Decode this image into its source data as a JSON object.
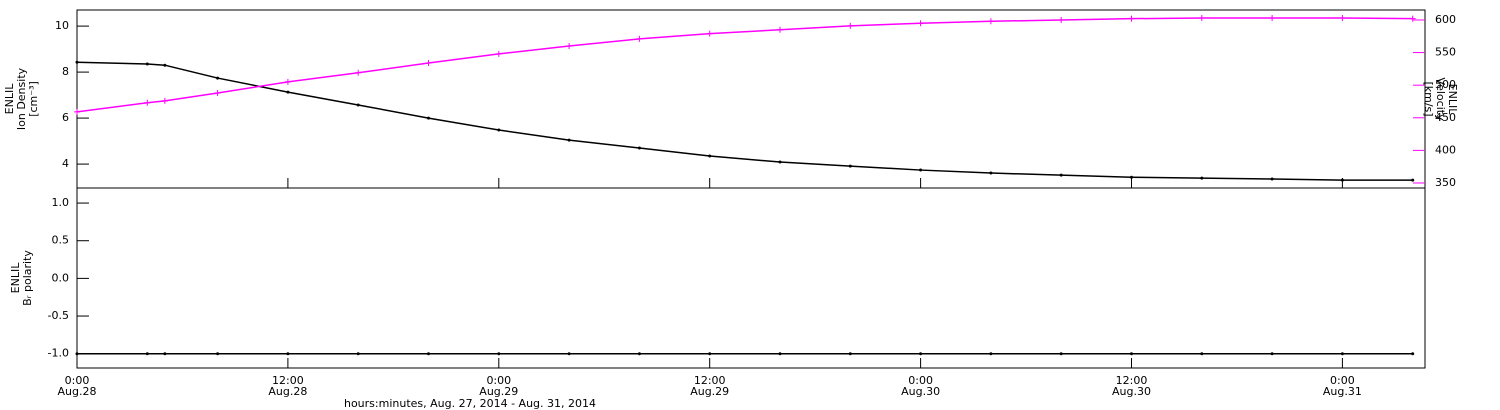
{
  "chart_data": [
    {
      "type": "line",
      "x": [
        0,
        4,
        5,
        8,
        12,
        16,
        20,
        24,
        28,
        32,
        36,
        40,
        44,
        48,
        52,
        56,
        60,
        64,
        68,
        72,
        76
      ],
      "xlim": [
        0,
        76.7
      ],
      "ylim": [
        2.96,
        10.7
      ],
      "yticks": [
        4,
        6,
        8,
        10
      ],
      "y2lim": [
        342.3,
        615.3
      ],
      "y2ticks": [
        350,
        400,
        450,
        500,
        550,
        600
      ],
      "ylabel": [
        "ENLIL",
        "Ion Density",
        "[cm⁻³]"
      ],
      "y2label": [
        "ENLIL",
        "Velocity",
        "[km/s]"
      ],
      "series": [
        {
          "color": "#000000",
          "values": [
            8.43,
            8.35,
            8.3,
            7.74,
            7.13,
            6.57,
            6.0,
            5.48,
            5.04,
            4.7,
            4.35,
            4.09,
            3.91,
            3.74,
            3.61,
            3.52,
            3.43,
            3.39,
            3.35,
            3.3,
            3.3
          ]
        },
        {
          "color": "#ff00ff",
          "axis": "y2",
          "values": [
            459,
            473,
            476,
            488,
            505,
            519,
            534,
            548,
            560,
            571,
            579,
            585,
            591,
            595,
            598,
            600,
            602,
            603,
            603,
            603,
            602
          ]
        }
      ]
    },
    {
      "type": "line",
      "x": [
        0,
        4,
        5,
        8,
        12,
        16,
        20,
        24,
        28,
        32,
        36,
        40,
        44,
        48,
        52,
        56,
        60,
        64,
        68,
        72,
        76
      ],
      "xlim": [
        0,
        76.7
      ],
      "xticks": [
        {
          "value": 0,
          "label": "0:00",
          "date": "Aug.28"
        },
        {
          "value": 12,
          "label": "12:00",
          "date": "Aug.28"
        },
        {
          "value": 24,
          "label": "0:00",
          "date": "Aug.29"
        },
        {
          "value": 36,
          "label": "12:00",
          "date": "Aug.29"
        },
        {
          "value": 48,
          "label": "0:00",
          "date": "Aug.30"
        },
        {
          "value": 60,
          "label": "12:00",
          "date": "Aug.30"
        },
        {
          "value": 72,
          "label": "0:00",
          "date": "Aug.31"
        }
      ],
      "xlabel": "hours:minutes, Aug. 27, 2014 - Aug. 31, 2014",
      "ylim": [
        -1.19,
        1.2
      ],
      "yticks": [
        {
          "value": -1,
          "label": "-1.0"
        },
        {
          "value": -0.5,
          "label": "-0.5"
        },
        {
          "value": 0,
          "label": "0.0"
        },
        {
          "value": 0.5,
          "label": "0.5"
        },
        {
          "value": 1,
          "label": "1.0"
        }
      ],
      "ylabel": [
        "ENLIL",
        "Bᵣ polarity"
      ],
      "series": [
        {
          "color": "#000000",
          "values": [
            -1,
            -1,
            -1,
            -1,
            -1,
            -1,
            -1,
            -1,
            -1,
            -1,
            -1,
            -1,
            -1,
            -1,
            -1,
            -1,
            -1,
            -1,
            -1,
            -1,
            -1
          ]
        }
      ]
    }
  ]
}
